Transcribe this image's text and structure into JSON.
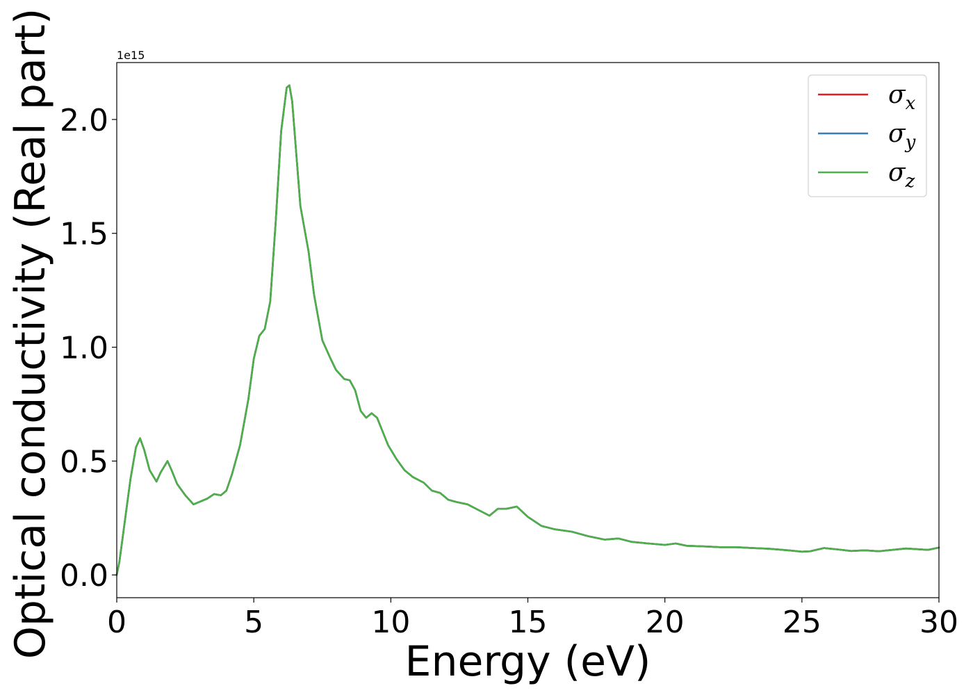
{
  "chart_data": {
    "type": "line",
    "title": "",
    "xlabel": "Energy (eV)",
    "ylabel": "Optical conductivity (Real part)",
    "offset_text": "1e15",
    "scale": 1000000000000000.0,
    "xlim": [
      0,
      30
    ],
    "ylim": [
      -0.1,
      2.25
    ],
    "xticks": [
      0,
      5,
      10,
      15,
      20,
      25,
      30
    ],
    "xtick_labels": [
      "0",
      "5",
      "10",
      "15",
      "20",
      "25",
      "30"
    ],
    "yticks": [
      0.0,
      0.5,
      1.0,
      1.5,
      2.0
    ],
    "ytick_labels": [
      "0.0",
      "0.5",
      "1.0",
      "1.5",
      "2.0"
    ],
    "grid": false,
    "legend_position": "top-right",
    "series": [
      {
        "name": "σ",
        "subscript": "x",
        "color": "#e41a1c"
      },
      {
        "name": "σ",
        "subscript": "y",
        "color": "#377eb8"
      },
      {
        "name": "σ",
        "subscript": "z",
        "color": "#4daf4a"
      }
    ],
    "x": [
      0.0,
      0.1,
      0.3,
      0.5,
      0.7,
      0.85,
      1.0,
      1.2,
      1.45,
      1.6,
      1.85,
      2.0,
      2.2,
      2.5,
      2.8,
      3.0,
      3.3,
      3.55,
      3.8,
      4.0,
      4.2,
      4.5,
      4.8,
      5.0,
      5.2,
      5.4,
      5.6,
      5.8,
      6.0,
      6.2,
      6.3,
      6.4,
      6.55,
      6.7,
      6.85,
      7.0,
      7.2,
      7.5,
      7.8,
      8.0,
      8.3,
      8.5,
      8.7,
      8.9,
      9.1,
      9.3,
      9.5,
      9.7,
      9.9,
      10.2,
      10.5,
      10.8,
      11.2,
      11.5,
      11.8,
      12.1,
      12.4,
      12.8,
      13.2,
      13.6,
      13.9,
      14.2,
      14.6,
      15.0,
      15.5,
      16.0,
      16.6,
      17.2,
      17.8,
      18.3,
      18.8,
      19.4,
      20.0,
      20.4,
      20.8,
      21.5,
      22.0,
      22.6,
      23.2,
      23.8,
      24.5,
      25.0,
      25.3,
      25.8,
      26.3,
      26.8,
      27.3,
      27.8,
      28.3,
      28.8,
      29.2,
      29.6,
      30.0
    ],
    "y": [
      0.0,
      0.06,
      0.24,
      0.42,
      0.56,
      0.6,
      0.55,
      0.46,
      0.41,
      0.45,
      0.5,
      0.46,
      0.4,
      0.35,
      0.31,
      0.32,
      0.335,
      0.355,
      0.35,
      0.37,
      0.44,
      0.57,
      0.77,
      0.95,
      1.05,
      1.08,
      1.2,
      1.55,
      1.95,
      2.14,
      2.15,
      2.08,
      1.85,
      1.62,
      1.52,
      1.42,
      1.23,
      1.03,
      0.95,
      0.9,
      0.86,
      0.855,
      0.81,
      0.72,
      0.69,
      0.71,
      0.69,
      0.63,
      0.57,
      0.51,
      0.46,
      0.43,
      0.405,
      0.37,
      0.36,
      0.33,
      0.32,
      0.31,
      0.285,
      0.26,
      0.29,
      0.29,
      0.3,
      0.255,
      0.215,
      0.2,
      0.19,
      0.17,
      0.155,
      0.16,
      0.145,
      0.138,
      0.132,
      0.138,
      0.128,
      0.125,
      0.122,
      0.122,
      0.118,
      0.115,
      0.108,
      0.102,
      0.104,
      0.118,
      0.112,
      0.105,
      0.108,
      0.104,
      0.11,
      0.116,
      0.113,
      0.11,
      0.12
    ]
  }
}
